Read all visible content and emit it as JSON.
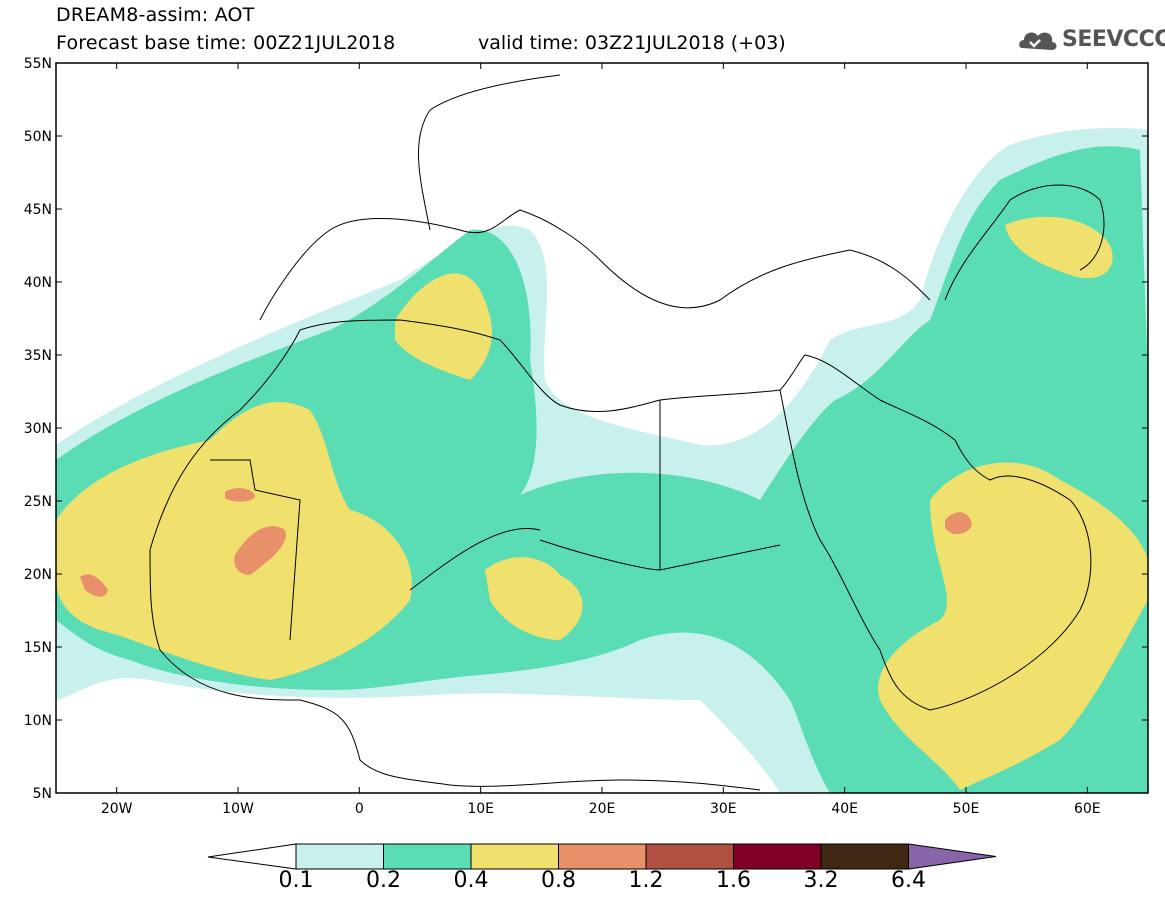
{
  "header": {
    "title": "DREAM8-assim: AOT",
    "base_time": "Forecast base time: 00Z21JUL2018",
    "valid_time": "valid time: 03Z21JUL2018 (+03)",
    "logo_text": "SEEVCCC"
  },
  "map": {
    "lat_labels": [
      "55N",
      "50N",
      "45N",
      "40N",
      "35N",
      "30N",
      "25N",
      "20N",
      "15N",
      "10N",
      "5N"
    ],
    "lon_labels": [
      "20W",
      "10W",
      "0",
      "10E",
      "20E",
      "30E",
      "40E",
      "50E",
      "60E"
    ],
    "lat_range": [
      5,
      55
    ],
    "lon_range": [
      -25,
      65
    ],
    "field": "AOT"
  },
  "colorbar": {
    "levels": [
      "0.1",
      "0.2",
      "0.4",
      "0.8",
      "1.2",
      "1.6",
      "3.2",
      "6.4"
    ],
    "colors": [
      "#c8f0ec",
      "#5adcb4",
      "#f0e06e",
      "#e8906a",
      "#b05040",
      "#800028",
      "#402814",
      "#8864a8"
    ]
  }
}
